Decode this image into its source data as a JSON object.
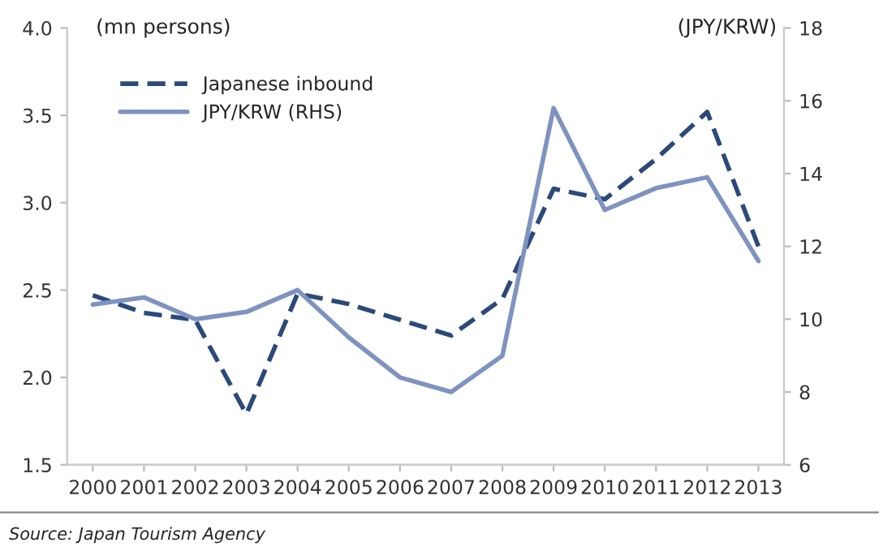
{
  "chart_data": {
    "type": "line",
    "ylabel": "(mn persons)",
    "y2label": "(JPY/KRW)",
    "categories": [
      "2000",
      "2001",
      "2002",
      "2003",
      "2004",
      "2005",
      "2006",
      "2007",
      "2008",
      "2009",
      "2010",
      "2011",
      "2012",
      "2013"
    ],
    "series": [
      {
        "name": "Japanese inbound",
        "color": "#2b4a7a",
        "line_style": "dashed",
        "values": [
          2.47,
          2.37,
          2.33,
          1.79,
          2.48,
          2.42,
          2.33,
          2.24,
          2.45,
          3.08,
          3.02,
          3.25,
          3.52,
          2.75
        ]
      },
      {
        "name": "JPY/KRW (RHS)",
        "color": "#7f93c0",
        "line_style": "solid",
        "axis": "y2",
        "values": [
          10.4,
          10.6,
          10.0,
          10.2,
          10.8,
          9.5,
          8.4,
          8.0,
          9.0,
          15.8,
          13.0,
          13.6,
          13.9,
          11.6
        ]
      }
    ],
    "ylim": [
      1.5,
      4.0
    ],
    "yticks": [
      {
        "value": 1.5,
        "label": "1.5"
      },
      {
        "value": 2.0,
        "label": "2.0"
      },
      {
        "value": 2.5,
        "label": "2.5"
      },
      {
        "value": 3.0,
        "label": "3.0"
      },
      {
        "value": 3.5,
        "label": "3.5"
      },
      {
        "value": 4.0,
        "label": "4.0"
      }
    ],
    "y2lim": [
      6,
      18
    ],
    "y2ticks": [
      6,
      8,
      10,
      12,
      14,
      16,
      18
    ],
    "grid": false,
    "legend": "top left",
    "marker": "none",
    "annotations": [
      "Source: Japan Tourism Agency"
    ]
  }
}
